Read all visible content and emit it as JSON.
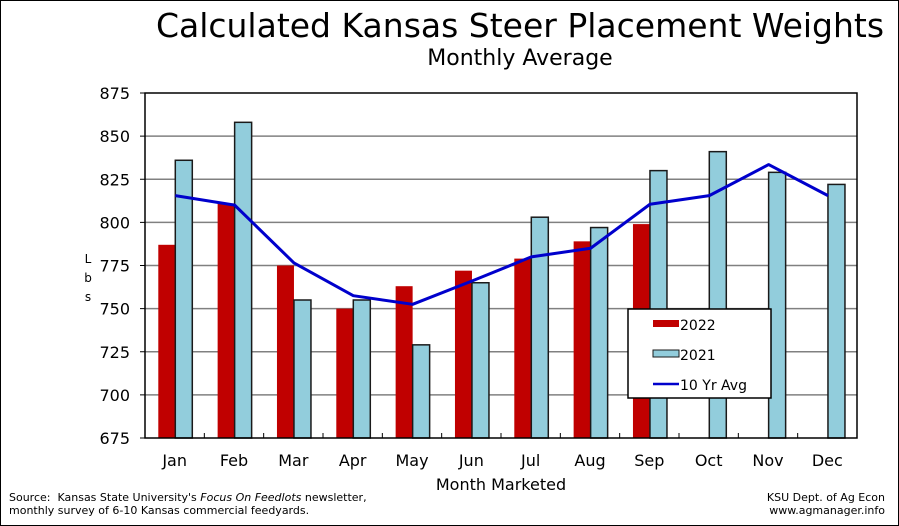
{
  "chart_data": {
    "type": "bar",
    "title": "Calculated Kansas Steer Placement Weights",
    "subtitle": "Monthly Average",
    "xlabel": "Month Marketed",
    "ylabel": "Lbs",
    "ylim": [
      675,
      875
    ],
    "yticks": [
      675,
      700,
      725,
      750,
      775,
      800,
      825,
      850,
      875
    ],
    "grid": true,
    "legend_position": "center-right",
    "categories": [
      "Jan",
      "Feb",
      "Mar",
      "Apr",
      "May",
      "Jun",
      "Jul",
      "Aug",
      "Sep",
      "Oct",
      "Nov",
      "Dec"
    ],
    "series": [
      {
        "name": "2022",
        "kind": "bar",
        "color": "#c00000",
        "values": [
          787,
          811,
          775,
          750,
          763,
          772,
          779,
          789,
          799,
          null,
          null,
          null
        ]
      },
      {
        "name": "2021",
        "kind": "bar",
        "color": "#92cddc",
        "values": [
          836,
          858,
          755,
          755,
          729,
          765,
          803,
          797,
          830,
          841,
          829,
          822
        ]
      },
      {
        "name": "10 Yr Avg",
        "kind": "line",
        "color": "#0000cc",
        "values": [
          815.5,
          810,
          776.5,
          757.5,
          752.5,
          766,
          780,
          785,
          810.5,
          815.5,
          833.5,
          815.5
        ]
      }
    ]
  },
  "footer": {
    "source_prefix": "Source:  Kansas State University's ",
    "source_italic": "Focus On Feedlots",
    "source_suffix": " newsletter,",
    "source_line2": "monthly survey of 6-10 Kansas commercial feedyards.",
    "credit_line1": "KSU Dept. of Ag Econ",
    "credit_line2": "www.agmanager.info"
  }
}
